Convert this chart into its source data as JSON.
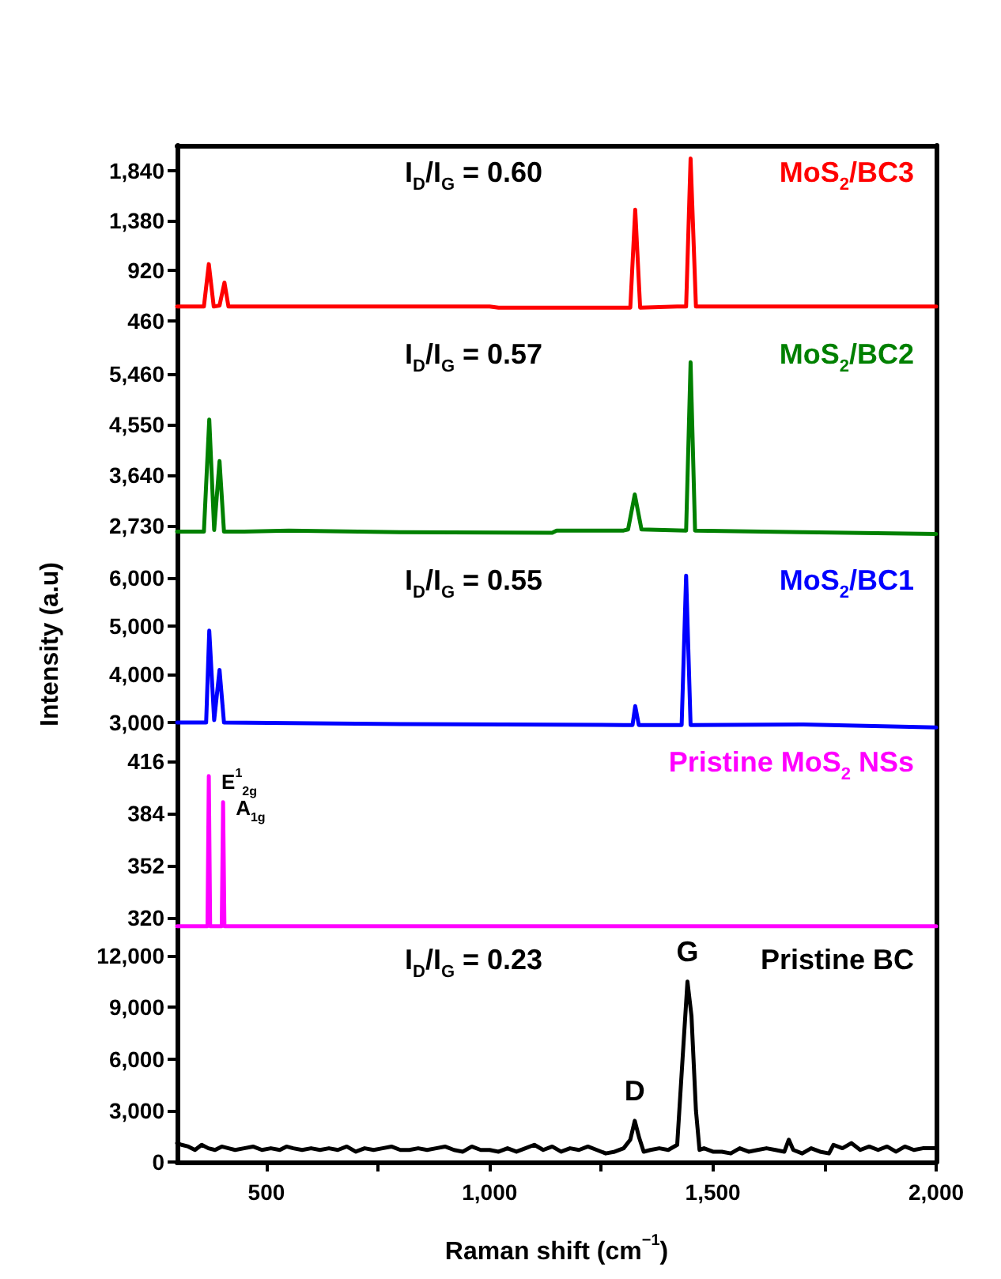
{
  "chart_data": [
    {
      "type": "line",
      "xlim": [
        300,
        2000
      ],
      "ylim": [
        400,
        2070
      ],
      "yticks": [
        460,
        920,
        {
          "value": 1380,
          "label": "1,380"
        },
        {
          "value": 1840,
          "label": "1,840"
        }
      ],
      "tick_labels": "y",
      "marker": "none",
      "line_style": "solid",
      "annotations": [
        "I$_{D}$/I$_{G}$ = 0.60"
      ],
      "series": [
        {
          "name": "MoS$_{2}$/BC3",
          "color": "#ff0000",
          "x": [
            300,
            360,
            371,
            382,
            395,
            406,
            415,
            700,
            760,
            1000,
            1020,
            1150,
            1300,
            1315,
            1326,
            1337,
            1420,
            1440,
            1450,
            1462,
            2000
          ],
          "values": [
            590,
            590,
            980,
            590,
            600,
            810,
            590,
            590,
            590,
            590,
            580,
            580,
            580,
            580,
            1480,
            580,
            590,
            590,
            1950,
            590,
            590
          ]
        }
      ]
    },
    {
      "type": "line",
      "xlim": [
        300,
        2000
      ],
      "ylim": [
        2230,
        6300
      ],
      "yticks": [
        {
          "value": 2730,
          "label": "2,730"
        },
        {
          "value": 3640,
          "label": "3,640"
        },
        {
          "value": 4550,
          "label": "4,550"
        },
        {
          "value": 5460,
          "label": "5,460"
        }
      ],
      "tick_labels": "y",
      "marker": "none",
      "line_style": "solid",
      "annotations": [
        "I$_{D}$/I$_{G}$ = 0.57"
      ],
      "series": [
        {
          "name": "MoS$_{2}$/BC2",
          "color": "#008000",
          "x": [
            300,
            360,
            372,
            383,
            395,
            405,
            450,
            550,
            800,
            1140,
            1150,
            1300,
            1310,
            1325,
            1340,
            1440,
            1450,
            1460,
            1700,
            2000
          ],
          "values": [
            2620,
            2620,
            4640,
            2650,
            3890,
            2620,
            2620,
            2640,
            2610,
            2600,
            2640,
            2640,
            2660,
            3290,
            2660,
            2640,
            5670,
            2640,
            2610,
            2580
          ]
        }
      ]
    },
    {
      "type": "line",
      "xlim": [
        300,
        2000
      ],
      "ylim": [
        2740,
        6500
      ],
      "yticks": [
        {
          "value": 3000,
          "label": "3,000"
        },
        {
          "value": 4000,
          "label": "4,000"
        },
        {
          "value": 5000,
          "label": "5,000"
        },
        {
          "value": 6000,
          "label": "6,000"
        }
      ],
      "tick_labels": "y",
      "marker": "none",
      "line_style": "solid",
      "ylabel": "Intensity (a.u)",
      "annotations": [
        "I$_{D}$/I$_{G}$ = 0.55"
      ],
      "series": [
        {
          "name": "MoS$_{2}$/BC1",
          "color": "#0000ff",
          "x": [
            300,
            365,
            372,
            383,
            395,
            405,
            800,
            1300,
            1320,
            1326,
            1334,
            1430,
            1440,
            1450,
            1700,
            2000
          ],
          "values": [
            3000,
            3000,
            4900,
            3050,
            4090,
            3000,
            2970,
            2950,
            2950,
            3340,
            2950,
            2950,
            6040,
            2950,
            2960,
            2900
          ]
        }
      ]
    },
    {
      "type": "line",
      "xlim": [
        300,
        2000
      ],
      "ylim": [
        311,
        432
      ],
      "yticks": [
        320,
        352,
        384,
        416
      ],
      "tick_labels": "y",
      "marker": "none",
      "line_style": "solid",
      "annotations": [
        {
          "text": "E$^{1}$$_{2g}$",
          "x": 371,
          "y": 407
        },
        {
          "text": "A$_{1g}$",
          "x": 403,
          "y": 391
        }
      ],
      "series": [
        {
          "name": "Pristine MoS$_{2}$ NSs",
          "color": "#ff00ff",
          "x": [
            300,
            368,
            371,
            374,
            400,
            403,
            406,
            2000
          ],
          "values": [
            315,
            315,
            407,
            315,
            315,
            391,
            315,
            315
          ]
        }
      ]
    },
    {
      "type": "line",
      "xlim": [
        300,
        2000
      ],
      "ylim": [
        0,
        13340
      ],
      "yticks": [
        0,
        {
          "value": 3000,
          "label": "3,000"
        },
        {
          "value": 6000,
          "label": "6,000"
        },
        {
          "value": 9000,
          "label": "9,000"
        },
        {
          "value": 12000,
          "label": "12,000"
        }
      ],
      "xticks": [
        500,
        {
          "value": 750,
          "label": null
        },
        {
          "value": 1000,
          "label": "1,000"
        },
        {
          "value": 1250,
          "label": null
        },
        {
          "value": 1500,
          "label": "1,500"
        },
        {
          "value": 1750,
          "label": null
        },
        {
          "value": 2000,
          "label": "2,000"
        }
      ],
      "marker": "none",
      "line_style": "solid",
      "xlabel": "Raman shift (cm$^{−1}$)",
      "annotations": [
        "I$_{D}$/I$_{G}$ = 0.23",
        {
          "text": "D",
          "x": 1325,
          "y": 2400
        },
        {
          "text": "G",
          "x": 1443,
          "y": 10500
        }
      ],
      "series": [
        {
          "name": "Pristine BC",
          "color": "#000000",
          "x": [
            300,
            310,
            325,
            340,
            355,
            370,
            385,
            400,
            415,
            430,
            450,
            470,
            490,
            510,
            530,
            545,
            560,
            580,
            600,
            620,
            640,
            660,
            680,
            700,
            720,
            740,
            760,
            780,
            800,
            820,
            840,
            860,
            880,
            900,
            920,
            940,
            960,
            980,
            1000,
            1020,
            1040,
            1060,
            1080,
            1100,
            1120,
            1140,
            1160,
            1180,
            1200,
            1220,
            1240,
            1260,
            1280,
            1300,
            1315,
            1325,
            1335,
            1345,
            1360,
            1380,
            1400,
            1420,
            1432,
            1443,
            1452,
            1462,
            1470,
            1480,
            1500,
            1520,
            1540,
            1560,
            1580,
            1600,
            1620,
            1640,
            1660,
            1670,
            1680,
            1700,
            1720,
            1740,
            1760,
            1770,
            1790,
            1810,
            1830,
            1850,
            1870,
            1890,
            1910,
            1930,
            1950,
            1970,
            2000
          ],
          "values": [
            1100,
            1000,
            900,
            700,
            1000,
            800,
            700,
            900,
            800,
            700,
            800,
            900,
            700,
            800,
            700,
            900,
            800,
            700,
            800,
            700,
            800,
            700,
            900,
            600,
            800,
            700,
            800,
            900,
            700,
            700,
            800,
            700,
            800,
            900,
            700,
            600,
            900,
            700,
            700,
            600,
            800,
            600,
            800,
            1000,
            700,
            900,
            600,
            800,
            700,
            900,
            700,
            500,
            600,
            800,
            1300,
            2400,
            1400,
            600,
            700,
            800,
            700,
            1000,
            6000,
            10500,
            8500,
            3000,
            700,
            800,
            600,
            600,
            500,
            800,
            600,
            700,
            800,
            700,
            600,
            1300,
            700,
            500,
            800,
            600,
            500,
            1000,
            800,
            1100,
            700,
            900,
            700,
            900,
            600,
            900,
            700,
            800,
            800
          ]
        }
      ]
    }
  ]
}
